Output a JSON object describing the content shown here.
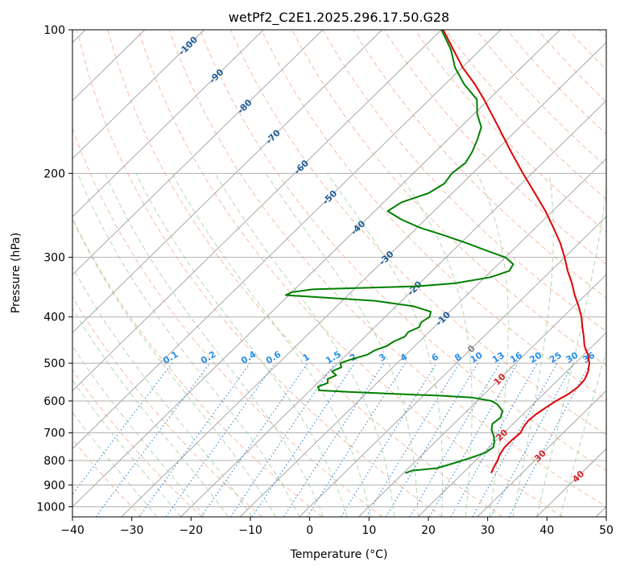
{
  "chart_data": {
    "type": "line",
    "subtype": "skew-t log-p diagram",
    "title": "wetPf2_C2E1.2025.296.17.50.G28",
    "xlabel": "Temperature (°C)",
    "ylabel": "Pressure (hPa)",
    "xlim": [
      -40,
      50
    ],
    "ylim": [
      1050,
      100
    ],
    "y_scale": "log",
    "x_ticks": [
      "−40",
      "−30",
      "−20",
      "−10",
      "0",
      "10",
      "20",
      "30",
      "40",
      "50"
    ],
    "y_ticks": [
      "100",
      "200",
      "300",
      "400",
      "500",
      "600",
      "700",
      "800",
      "900",
      "1000"
    ],
    "grid": true,
    "colors": {
      "temperature": "#e00000",
      "dewpoint": "#008000",
      "isotherm": "#a8a8a8",
      "dry_adiabat": "#f4a582",
      "moist_adiabat": "#7fbf7f",
      "mixing_ratio": "#3a8fd9",
      "isotherm_label": "#1f5f99",
      "isotherm_label_warm": "#d62728",
      "isotherm_label_zero": "#808080",
      "mixing_label": "#2a8ee8"
    },
    "isotherm_labels": [
      {
        "temp": -100,
        "text": "-100"
      },
      {
        "temp": -90,
        "text": "-90"
      },
      {
        "temp": -80,
        "text": "-80"
      },
      {
        "temp": -70,
        "text": "-70"
      },
      {
        "temp": -60,
        "text": "-60"
      },
      {
        "temp": -50,
        "text": "-50"
      },
      {
        "temp": -40,
        "text": "-40"
      },
      {
        "temp": -30,
        "text": "-30"
      },
      {
        "temp": -20,
        "text": "-20"
      },
      {
        "temp": -10,
        "text": "-10"
      },
      {
        "temp": 0,
        "text": "0"
      },
      {
        "temp": 10,
        "text": "10"
      },
      {
        "temp": 20,
        "text": "20"
      },
      {
        "temp": 30,
        "text": "30"
      },
      {
        "temp": 40,
        "text": "40"
      }
    ],
    "mixing_ratio_labels": [
      "0.1",
      "0.2",
      "0.4",
      "0.6",
      "1",
      "1.5",
      "2",
      "3",
      "4",
      "6",
      "8",
      "10",
      "13",
      "16",
      "20",
      "25",
      "30",
      "36"
    ],
    "series": [
      {
        "key": "temperature",
        "x_unskewed_at_1000": true,
        "points": [
          [
            850,
            24.8
          ],
          [
            830,
            24.3
          ],
          [
            800,
            23.7
          ],
          [
            775,
            23.0
          ],
          [
            750,
            22.6
          ],
          [
            725,
            22.6
          ],
          [
            700,
            22.8
          ],
          [
            680,
            22.3
          ],
          [
            660,
            22.0
          ],
          [
            640,
            22.2
          ],
          [
            620,
            22.7
          ],
          [
            600,
            23.3
          ],
          [
            580,
            24.2
          ],
          [
            560,
            24.6
          ],
          [
            540,
            24.4
          ],
          [
            520,
            23.6
          ],
          [
            500,
            22.4
          ],
          [
            480,
            20.7
          ],
          [
            460,
            18.6
          ],
          [
            440,
            16.9
          ],
          [
            420,
            15.0
          ],
          [
            400,
            13.1
          ],
          [
            380,
            10.8
          ],
          [
            360,
            8.2
          ],
          [
            340,
            5.7
          ],
          [
            320,
            2.8
          ],
          [
            300,
            0.0
          ],
          [
            280,
            -3.2
          ],
          [
            260,
            -7.0
          ],
          [
            240,
            -11.2
          ],
          [
            220,
            -16.1
          ],
          [
            200,
            -21.5
          ],
          [
            180,
            -27.3
          ],
          [
            160,
            -33.6
          ],
          [
            140,
            -40.8
          ],
          [
            130,
            -45.0
          ],
          [
            120,
            -49.9
          ],
          [
            110,
            -54.6
          ],
          [
            100,
            -59.7
          ]
        ]
      },
      {
        "key": "dewpoint",
        "points": [
          [
            850,
            10.3
          ],
          [
            840,
            11.0
          ],
          [
            830,
            14.8
          ],
          [
            810,
            16.8
          ],
          [
            790,
            18.7
          ],
          [
            770,
            20.3
          ],
          [
            750,
            20.7
          ],
          [
            730,
            19.9
          ],
          [
            710,
            18.8
          ],
          [
            690,
            17.4
          ],
          [
            670,
            16.5
          ],
          [
            650,
            16.8
          ],
          [
            630,
            16.0
          ],
          [
            610,
            14.0
          ],
          [
            600,
            12.4
          ],
          [
            590,
            8.5
          ],
          [
            585,
            3.0
          ],
          [
            580,
            -5.0
          ],
          [
            575,
            -12.5
          ],
          [
            570,
            -18.5
          ],
          [
            560,
            -19.3
          ],
          [
            550,
            -18.3
          ],
          [
            540,
            -19.0
          ],
          [
            530,
            -18.2
          ],
          [
            520,
            -19.6
          ],
          [
            510,
            -18.7
          ],
          [
            500,
            -19.6
          ],
          [
            490,
            -18.3
          ],
          [
            480,
            -16.5
          ],
          [
            470,
            -16.0
          ],
          [
            460,
            -14.7
          ],
          [
            450,
            -14.3
          ],
          [
            440,
            -13.3
          ],
          [
            430,
            -13.5
          ],
          [
            420,
            -12.5
          ],
          [
            410,
            -13.0
          ],
          [
            400,
            -12.5
          ],
          [
            390,
            -13.2
          ],
          [
            380,
            -17.0
          ],
          [
            370,
            -24.5
          ],
          [
            360,
            -40.5
          ],
          [
            355,
            -40.0
          ],
          [
            350,
            -37.0
          ],
          [
            345,
            -20.0
          ],
          [
            340,
            -14.0
          ],
          [
            330,
            -9.0
          ],
          [
            320,
            -7.0
          ],
          [
            310,
            -7.5
          ],
          [
            300,
            -10.0
          ],
          [
            290,
            -14.5
          ],
          [
            280,
            -19.0
          ],
          [
            270,
            -24.0
          ],
          [
            260,
            -29.5
          ],
          [
            250,
            -34.0
          ],
          [
            240,
            -37.8
          ],
          [
            230,
            -37.0
          ],
          [
            220,
            -34.0
          ],
          [
            210,
            -33.0
          ],
          [
            200,
            -33.5
          ],
          [
            190,
            -33.0
          ],
          [
            180,
            -33.8
          ],
          [
            170,
            -35.0
          ],
          [
            160,
            -36.5
          ],
          [
            150,
            -39.5
          ],
          [
            140,
            -42.0
          ],
          [
            130,
            -46.8
          ],
          [
            120,
            -51.2
          ],
          [
            110,
            -55.0
          ],
          [
            100,
            -60.0
          ]
        ]
      }
    ]
  }
}
